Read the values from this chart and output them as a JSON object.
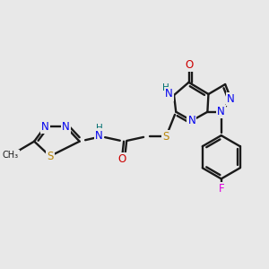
{
  "bg_color": "#e8e8e8",
  "atom_colors": {
    "C": "#1a1a1a",
    "N": "#0000ee",
    "O": "#cc0000",
    "S": "#b8860b",
    "F": "#dd00dd",
    "H": "#007070"
  },
  "bond_color": "#1a1a1a",
  "figsize": [
    3.0,
    3.0
  ],
  "dpi": 100,
  "xlim": [
    20,
    280
  ],
  "ylim": [
    30,
    280
  ]
}
